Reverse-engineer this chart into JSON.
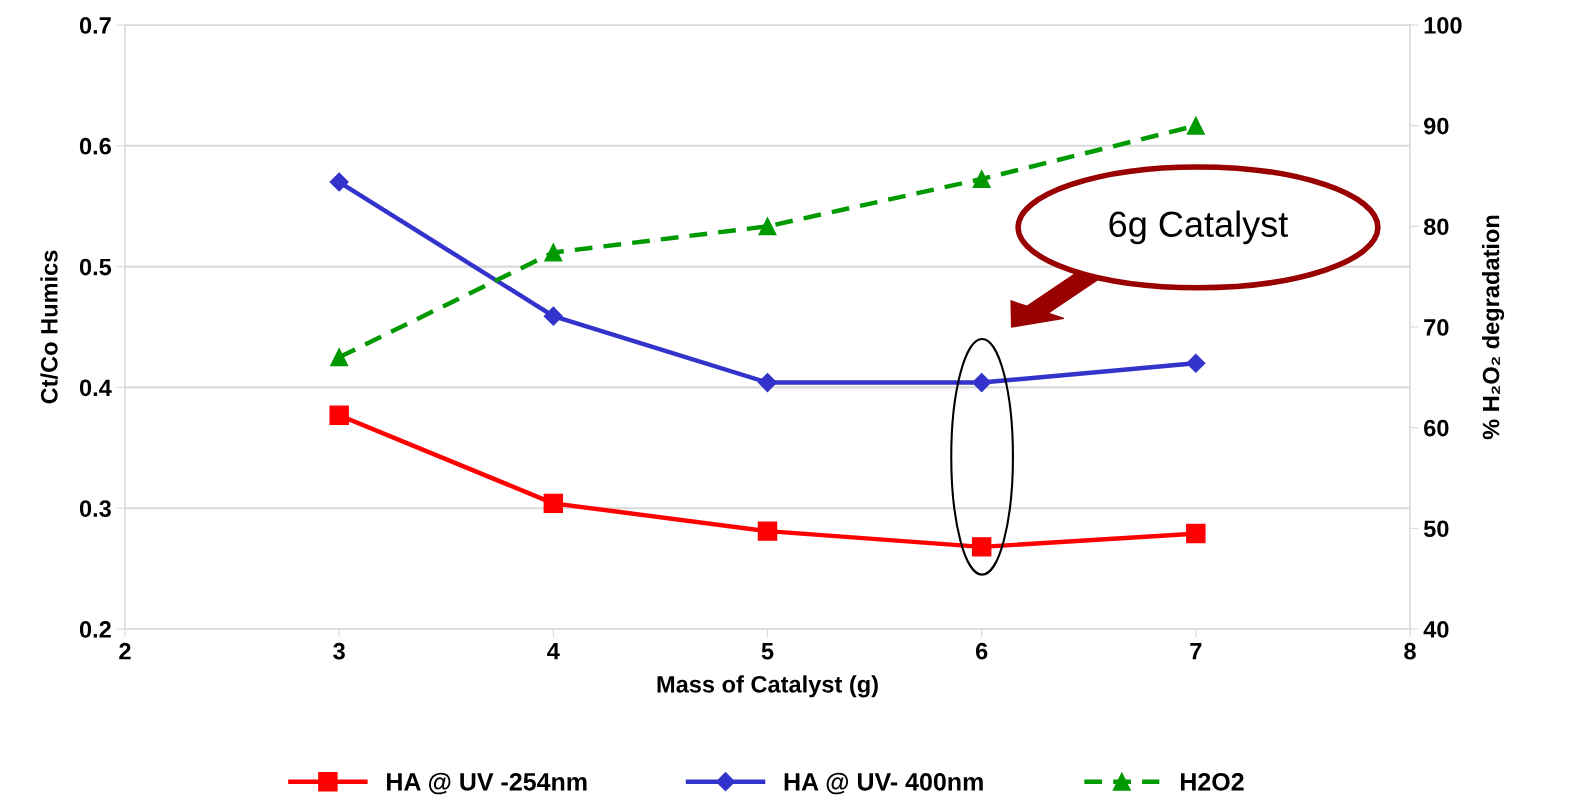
{
  "chart_data": {
    "type": "line",
    "xlabel": "Mass of Catalyst (g)",
    "ylabel": "Ct/Co Humics",
    "y2label": "% H₂O₂ degradation",
    "x": [
      3,
      4,
      5,
      6,
      7
    ],
    "series": [
      {
        "name": "HA @ UV -254nm",
        "color": "#ff0000",
        "marker": "square",
        "line_style": "solid",
        "values": [
          0.377,
          0.304,
          0.281,
          0.268,
          0.279
        ]
      },
      {
        "name": "HA @ UV- 400nm",
        "color": "#3333cc",
        "marker": "diamond",
        "line_style": "solid",
        "values": [
          0.57,
          0.459,
          0.404,
          0.404,
          0.42
        ]
      },
      {
        "name": "H2O2",
        "color": "#009900",
        "marker": "triangle",
        "line_style": "dashed",
        "axis": "y2",
        "values": [
          67.0,
          77.4,
          80.0,
          84.7,
          90.0
        ]
      }
    ],
    "xlim": [
      2,
      8
    ],
    "xticks": [
      2,
      3,
      4,
      5,
      6,
      7,
      8
    ],
    "ylim": [
      0.2,
      0.7
    ],
    "yticks": [
      0.2,
      0.3,
      0.4,
      0.5,
      0.6,
      0.7
    ],
    "y2lim": [
      40,
      100
    ],
    "y2ticks": [
      40,
      50,
      60,
      70,
      80,
      90,
      100
    ],
    "grid": "y",
    "legend": "bottom",
    "annotations": [
      "6g Catalyst"
    ]
  }
}
